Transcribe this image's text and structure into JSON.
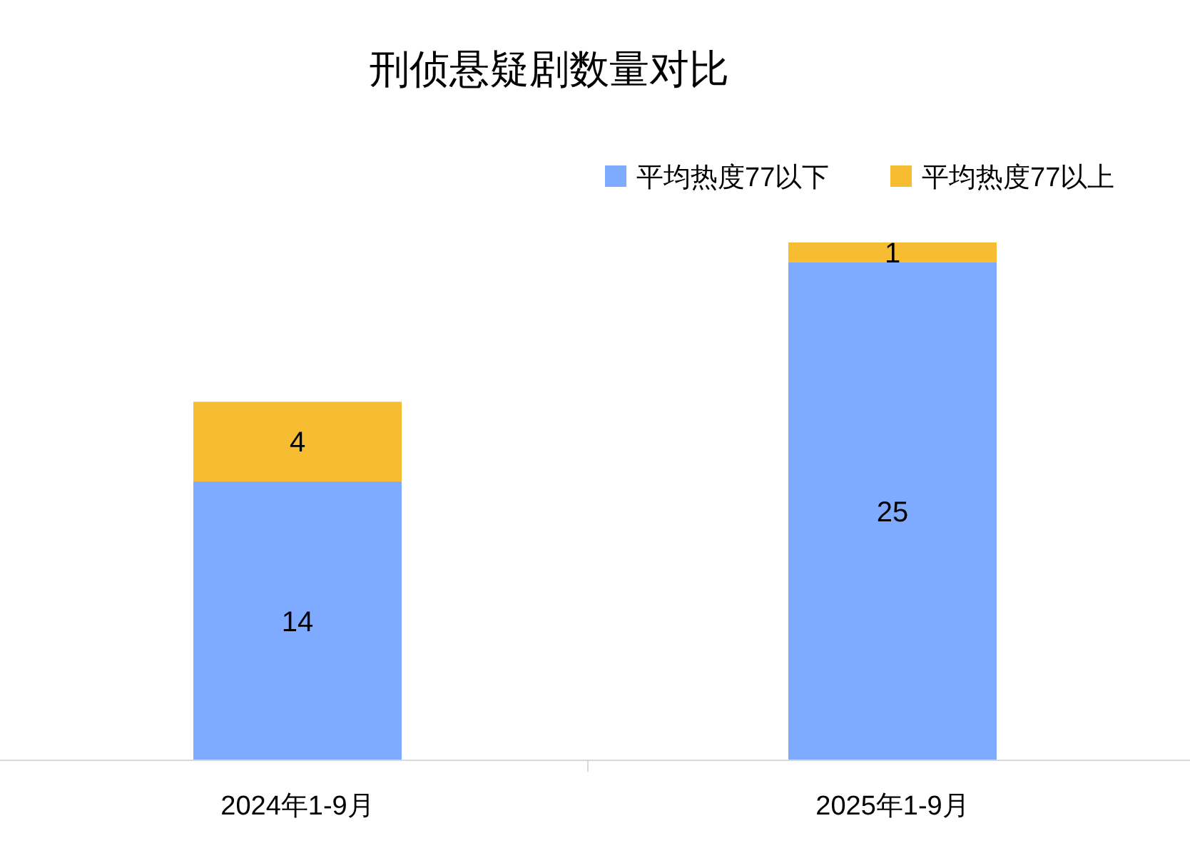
{
  "chart_data": {
    "type": "bar",
    "title": "刑侦悬疑剧数量对比",
    "categories": [
      "2024年1-9月",
      "2025年1-9月"
    ],
    "stacked": true,
    "data_labels": true,
    "legend": "top right",
    "series": [
      {
        "name": "平均热度77以下",
        "color": "#7eaaff",
        "values": [
          14,
          25
        ]
      },
      {
        "name": "平均热度77以上",
        "color": "#f6bd33",
        "values": [
          4,
          1
        ]
      }
    ]
  }
}
